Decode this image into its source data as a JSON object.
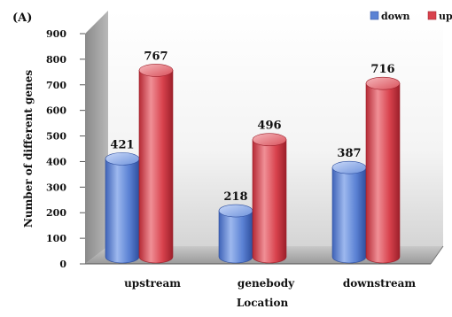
{
  "panel_label": "(A)",
  "chart_data": {
    "type": "bar",
    "categories": [
      "upstream",
      "genebody",
      "downstream"
    ],
    "series": [
      {
        "name": "down",
        "values": [
          421,
          218,
          387
        ],
        "color": "#5b82d4"
      },
      {
        "name": "up",
        "values": [
          767,
          496,
          716
        ],
        "color": "#d8424d"
      }
    ],
    "xlabel": "Location",
    "ylabel": "Number of different genes",
    "ylim": [
      0,
      900
    ],
    "yticks": [
      0,
      100,
      200,
      300,
      400,
      500,
      600,
      700,
      800,
      900
    ],
    "legend_position": "top-right",
    "grid": false,
    "style": "3d-cylinder"
  }
}
